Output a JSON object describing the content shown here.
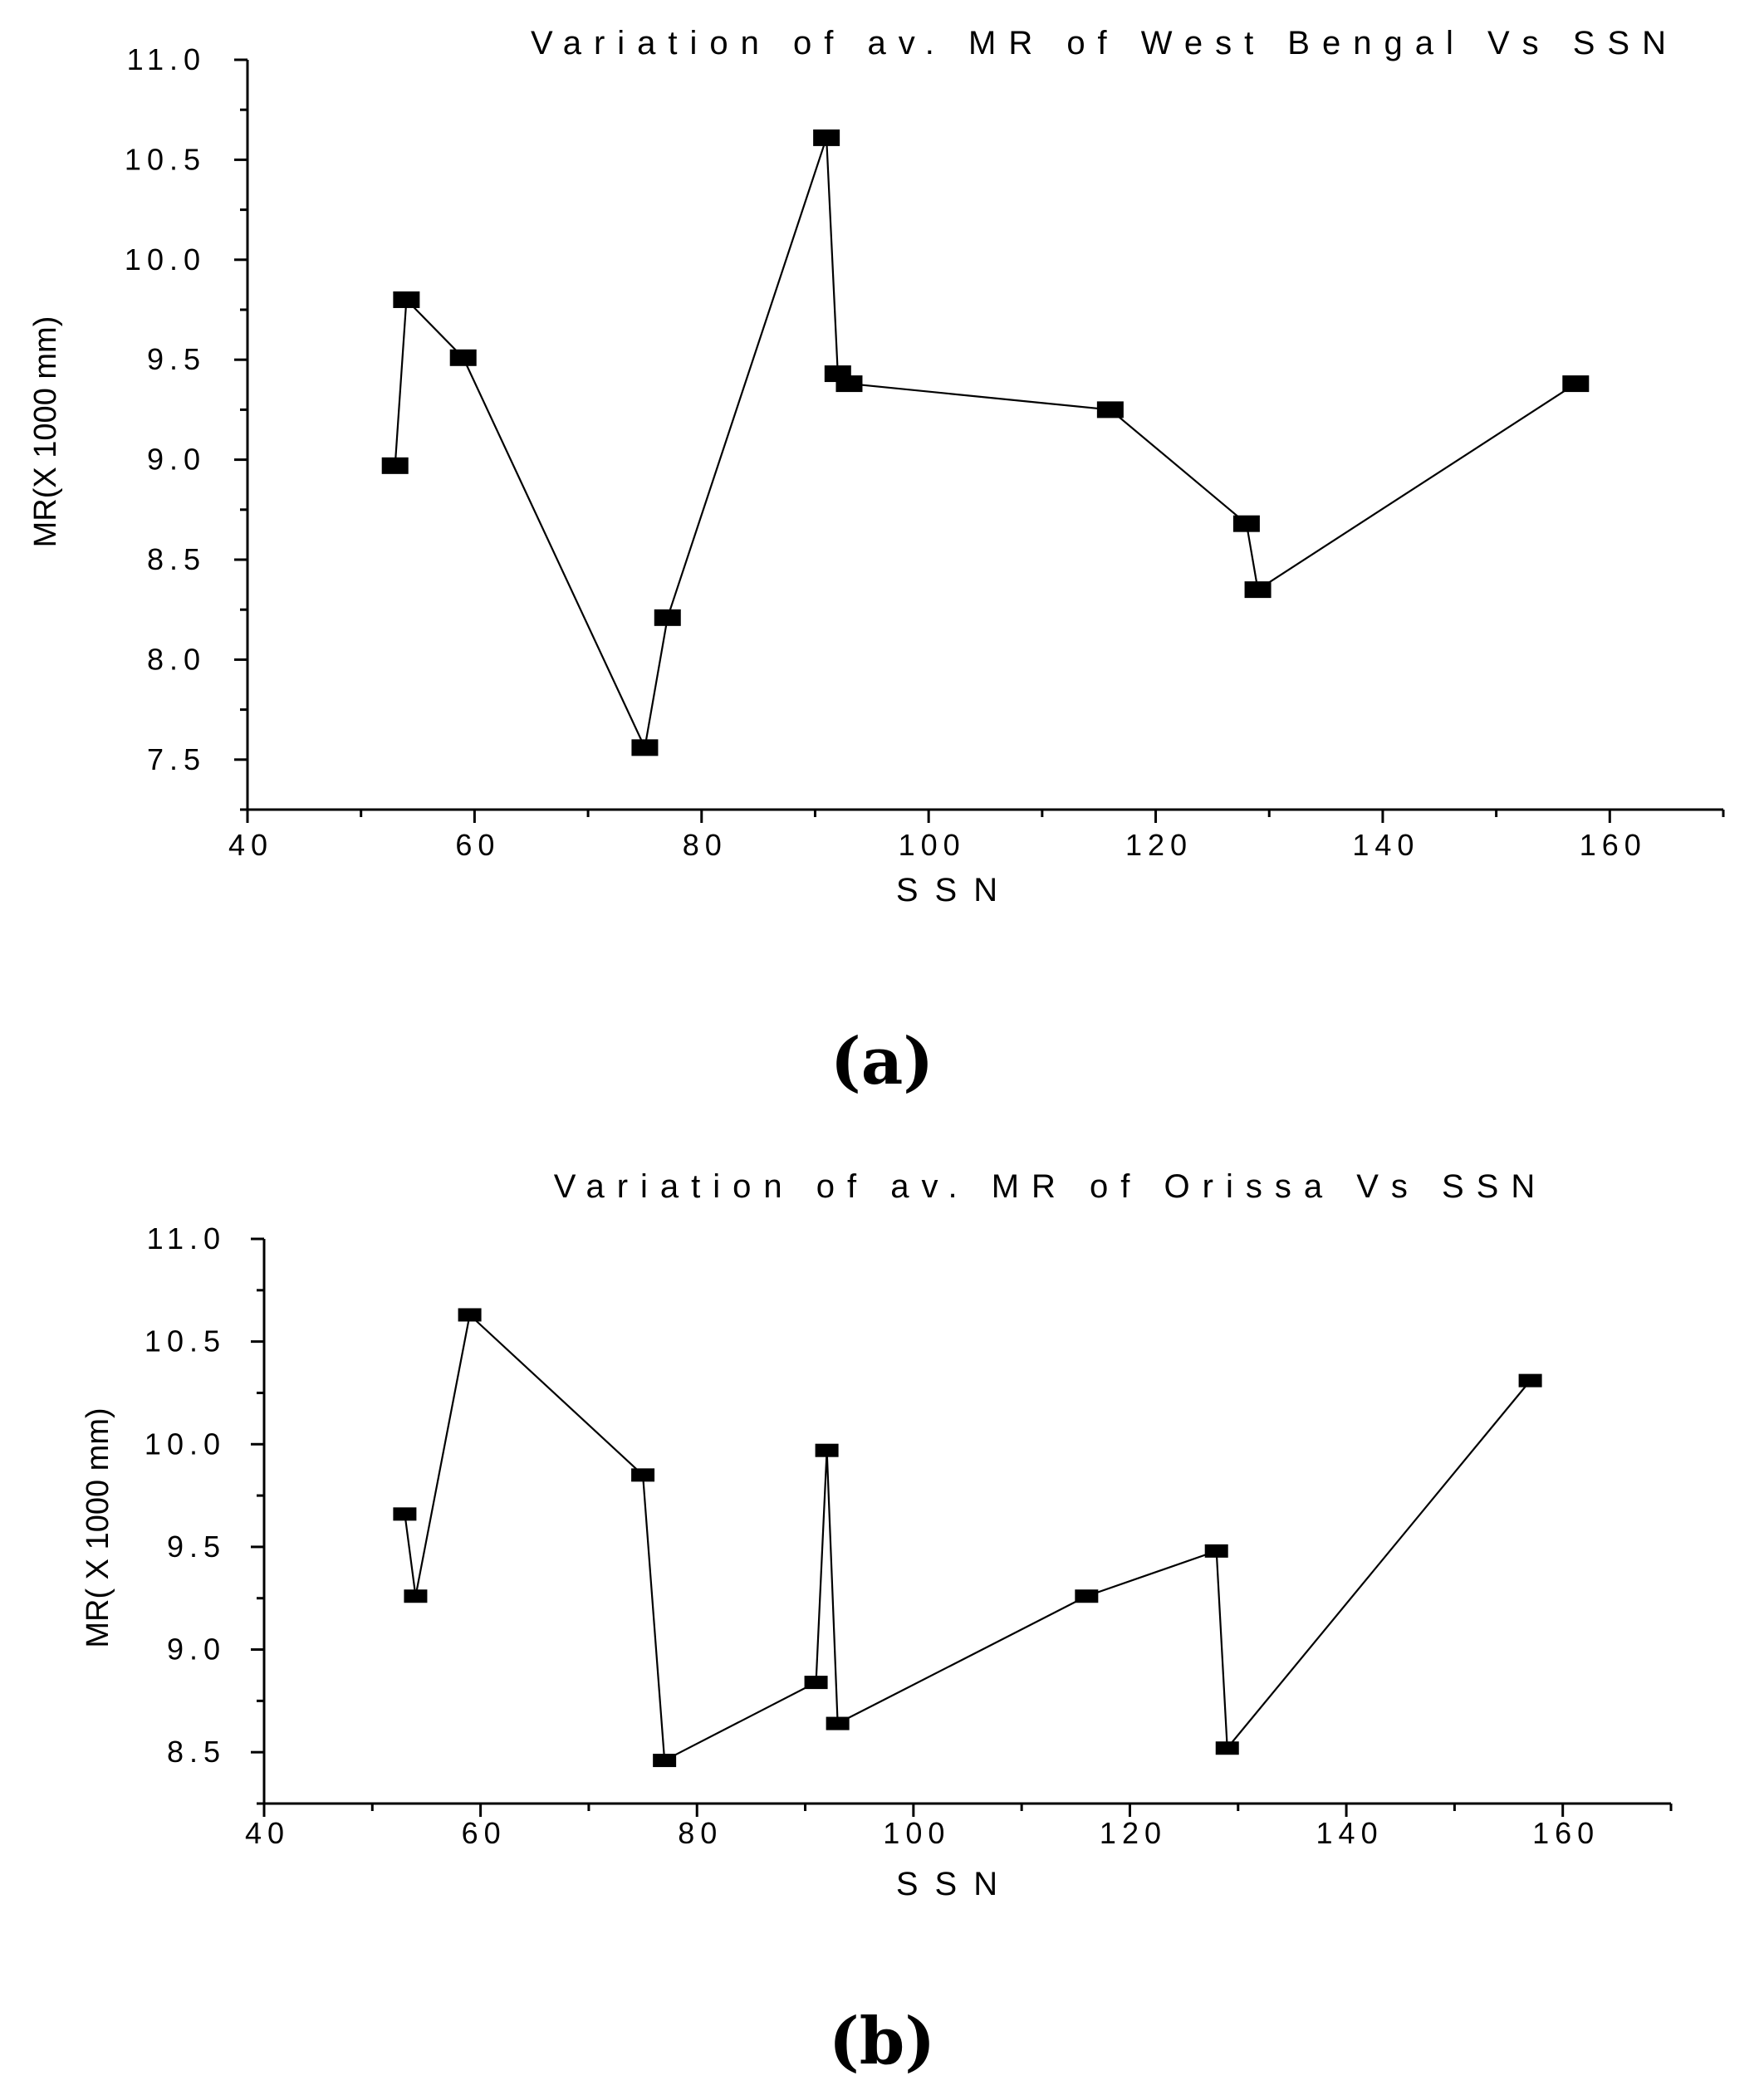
{
  "chart_data": [
    {
      "type": "line",
      "title": "Variation of av. MR of West Bengal Vs SSN",
      "xlabel": "SSN",
      "ylabel": "MR(X 1000 mm)",
      "xlim": [
        40,
        170
      ],
      "ylim": [
        7.25,
        11.0
      ],
      "x_ticks": [
        40,
        60,
        80,
        100,
        120,
        140,
        160
      ],
      "x_tick_labels": [
        "40",
        "60",
        "80",
        "100",
        "120",
        "140",
        "160"
      ],
      "y_ticks": [
        7.5,
        8.0,
        8.5,
        9.0,
        9.5,
        10.0,
        10.5,
        11.0
      ],
      "y_tick_labels": [
        "7.5",
        "8.0",
        "8.5",
        "9.0",
        "9.5",
        "10.0",
        "10.5",
        "11.0"
      ],
      "grid": false,
      "series": [
        {
          "x": [
            53,
            54,
            59,
            75,
            77,
            91,
            92,
            93,
            116,
            128,
            129,
            157
          ],
          "y": [
            8.97,
            9.8,
            9.51,
            7.56,
            8.21,
            10.61,
            9.43,
            9.38,
            9.25,
            8.68,
            8.35,
            9.38
          ]
        }
      ],
      "panel_label": "(a)"
    },
    {
      "type": "line",
      "title": "Variation of av. MR of Orissa Vs SSN",
      "xlabel": "SSN",
      "ylabel": "MR( X 1000 mm)",
      "xlim": [
        40,
        170
      ],
      "ylim": [
        8.25,
        11.0
      ],
      "x_ticks": [
        40,
        60,
        80,
        100,
        120,
        140,
        160
      ],
      "x_tick_labels": [
        "40",
        "60",
        "80",
        "100",
        "120",
        "140",
        "160"
      ],
      "y_ticks": [
        8.5,
        9.0,
        9.5,
        10.0,
        10.5,
        11.0
      ],
      "y_tick_labels": [
        "8.5",
        "9.0",
        "9.5",
        "10.0",
        "10.5",
        "11.0"
      ],
      "grid": false,
      "series": [
        {
          "x": [
            53,
            54,
            59,
            75,
            77,
            91,
            92,
            93,
            116,
            128,
            129,
            157
          ],
          "y": [
            9.66,
            9.26,
            10.63,
            9.85,
            8.46,
            8.84,
            9.97,
            8.64,
            9.26,
            9.48,
            8.52,
            10.31
          ]
        }
      ],
      "panel_label": "(b)"
    }
  ]
}
